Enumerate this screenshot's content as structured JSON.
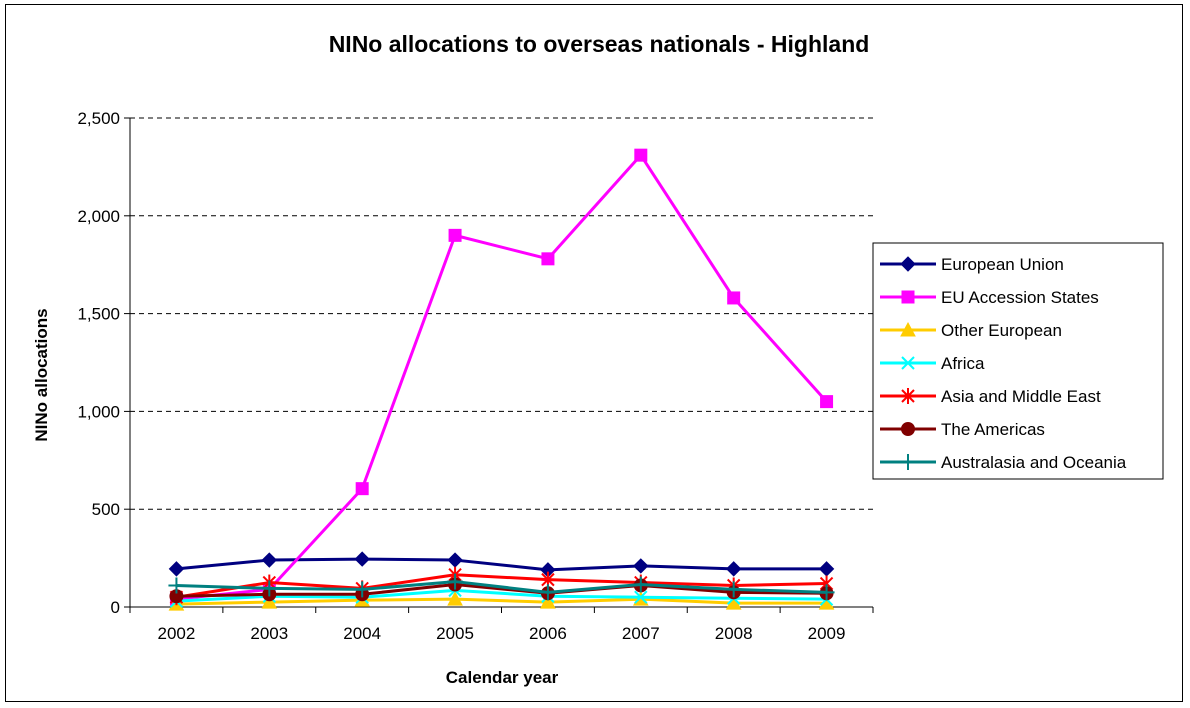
{
  "chart_data": {
    "type": "line",
    "title": "NINo allocations to overseas nationals  - Highland",
    "xlabel": "Calendar year",
    "ylabel": "NINo allocations",
    "x": [
      "2002",
      "2003",
      "2004",
      "2005",
      "2006",
      "2007",
      "2008",
      "2009"
    ],
    "ylim": [
      0,
      2500
    ],
    "yticks": [
      0,
      500,
      1000,
      1500,
      2000,
      2500
    ],
    "ytick_labels": [
      "0",
      "500",
      "1,000",
      "1,500",
      "2,000",
      "2,500"
    ],
    "grid": "horizontal dashed",
    "legend_position": "right",
    "series": [
      {
        "name": "European Union",
        "color": "#000080",
        "marker": "diamond",
        "values": [
          195,
          240,
          245,
          240,
          190,
          210,
          195,
          195
        ]
      },
      {
        "name": "EU Accession States",
        "color": "#FF00FF",
        "marker": "square",
        "values": [
          40,
          90,
          605,
          1900,
          1780,
          2310,
          1580,
          1050
        ]
      },
      {
        "name": "Other European",
        "color": "#FFCC00",
        "marker": "triangle",
        "values": [
          15,
          25,
          35,
          40,
          25,
          40,
          20,
          20
        ]
      },
      {
        "name": "Africa",
        "color": "#00FFFF",
        "marker": "x",
        "values": [
          30,
          55,
          50,
          85,
          55,
          50,
          45,
          40
        ]
      },
      {
        "name": "Asia and Middle East",
        "color": "#FF0000",
        "marker": "star",
        "values": [
          50,
          125,
          95,
          165,
          140,
          125,
          110,
          120
        ]
      },
      {
        "name": "The Americas",
        "color": "#800000",
        "marker": "circle",
        "values": [
          55,
          65,
          65,
          115,
          70,
          110,
          75,
          70
        ]
      },
      {
        "name": "Australasia and Oceania",
        "color": "#008080",
        "marker": "plus",
        "values": [
          110,
          95,
          90,
          130,
          75,
          115,
          90,
          75
        ]
      }
    ]
  }
}
